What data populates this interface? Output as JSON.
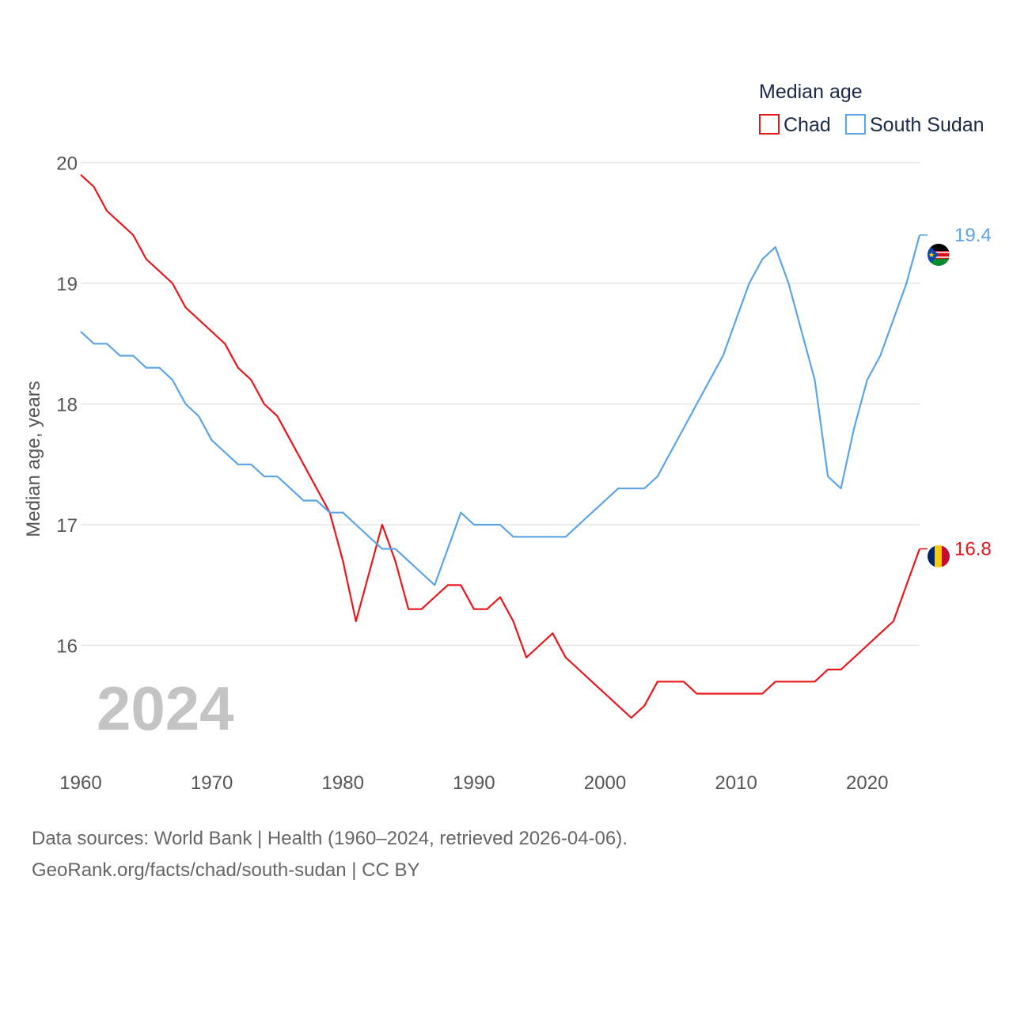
{
  "chart_data": {
    "type": "line",
    "title": "",
    "legend_title": "Median age",
    "ylabel": "Median age, years",
    "xlabel": "",
    "xlim": [
      1960,
      2024
    ],
    "ylim": [
      15.0,
      20.2
    ],
    "x_ticks": [
      1960,
      1970,
      1980,
      1990,
      2000,
      2010,
      2020
    ],
    "y_ticks": [
      16,
      17,
      18,
      19,
      20
    ],
    "current_year_label": "2024",
    "legend_position": "top-right",
    "x": [
      1960,
      1961,
      1962,
      1963,
      1964,
      1965,
      1966,
      1967,
      1968,
      1969,
      1970,
      1971,
      1972,
      1973,
      1974,
      1975,
      1976,
      1977,
      1978,
      1979,
      1980,
      1981,
      1982,
      1983,
      1984,
      1985,
      1986,
      1987,
      1988,
      1989,
      1990,
      1991,
      1992,
      1993,
      1994,
      1995,
      1996,
      1997,
      1998,
      1999,
      2000,
      2001,
      2002,
      2003,
      2004,
      2005,
      2006,
      2007,
      2008,
      2009,
      2010,
      2011,
      2012,
      2013,
      2014,
      2015,
      2016,
      2017,
      2018,
      2019,
      2020,
      2021,
      2022,
      2023,
      2024
    ],
    "series": [
      {
        "name": "Chad",
        "color": "#e8161b",
        "end_label": "16.8",
        "flag": "chad-flag-icon",
        "values": [
          19.9,
          19.8,
          19.6,
          19.5,
          19.4,
          19.2,
          19.1,
          19.0,
          18.8,
          18.7,
          18.6,
          18.5,
          18.3,
          18.2,
          18.0,
          17.9,
          17.7,
          17.5,
          17.3,
          17.1,
          16.7,
          16.2,
          16.6,
          17.0,
          16.7,
          16.3,
          16.3,
          16.4,
          16.5,
          16.5,
          16.3,
          16.3,
          16.4,
          16.2,
          15.9,
          16.0,
          16.1,
          15.9,
          15.8,
          15.7,
          15.6,
          15.5,
          15.4,
          15.5,
          15.7,
          15.7,
          15.7,
          15.6,
          15.6,
          15.6,
          15.6,
          15.6,
          15.6,
          15.7,
          15.7,
          15.7,
          15.7,
          15.8,
          15.8,
          15.9,
          16.0,
          16.1,
          16.2,
          16.5,
          16.8
        ]
      },
      {
        "name": "South Sudan",
        "color": "#5ba4e6",
        "end_label": "19.4",
        "flag": "south-sudan-flag-icon",
        "values": [
          18.6,
          18.5,
          18.5,
          18.4,
          18.4,
          18.3,
          18.3,
          18.2,
          18.0,
          17.9,
          17.7,
          17.6,
          17.5,
          17.5,
          17.4,
          17.4,
          17.3,
          17.2,
          17.2,
          17.1,
          17.1,
          17.0,
          16.9,
          16.8,
          16.8,
          16.7,
          16.6,
          16.5,
          16.8,
          17.1,
          17.0,
          17.0,
          17.0,
          16.9,
          16.9,
          16.9,
          16.9,
          16.9,
          17.0,
          17.1,
          17.2,
          17.3,
          17.3,
          17.3,
          17.4,
          17.6,
          17.8,
          18.0,
          18.2,
          18.4,
          18.7,
          19.0,
          19.2,
          19.3,
          19.0,
          18.6,
          18.2,
          17.4,
          17.3,
          17.8,
          18.2,
          18.4,
          18.7,
          19.0,
          19.4
        ]
      }
    ]
  },
  "footer": {
    "source_line": "Data sources: World Bank | Health (1960–2024, retrieved 2026-04-06).",
    "credit_line": "GeoRank.org/facts/chad/south-sudan | CC BY"
  }
}
